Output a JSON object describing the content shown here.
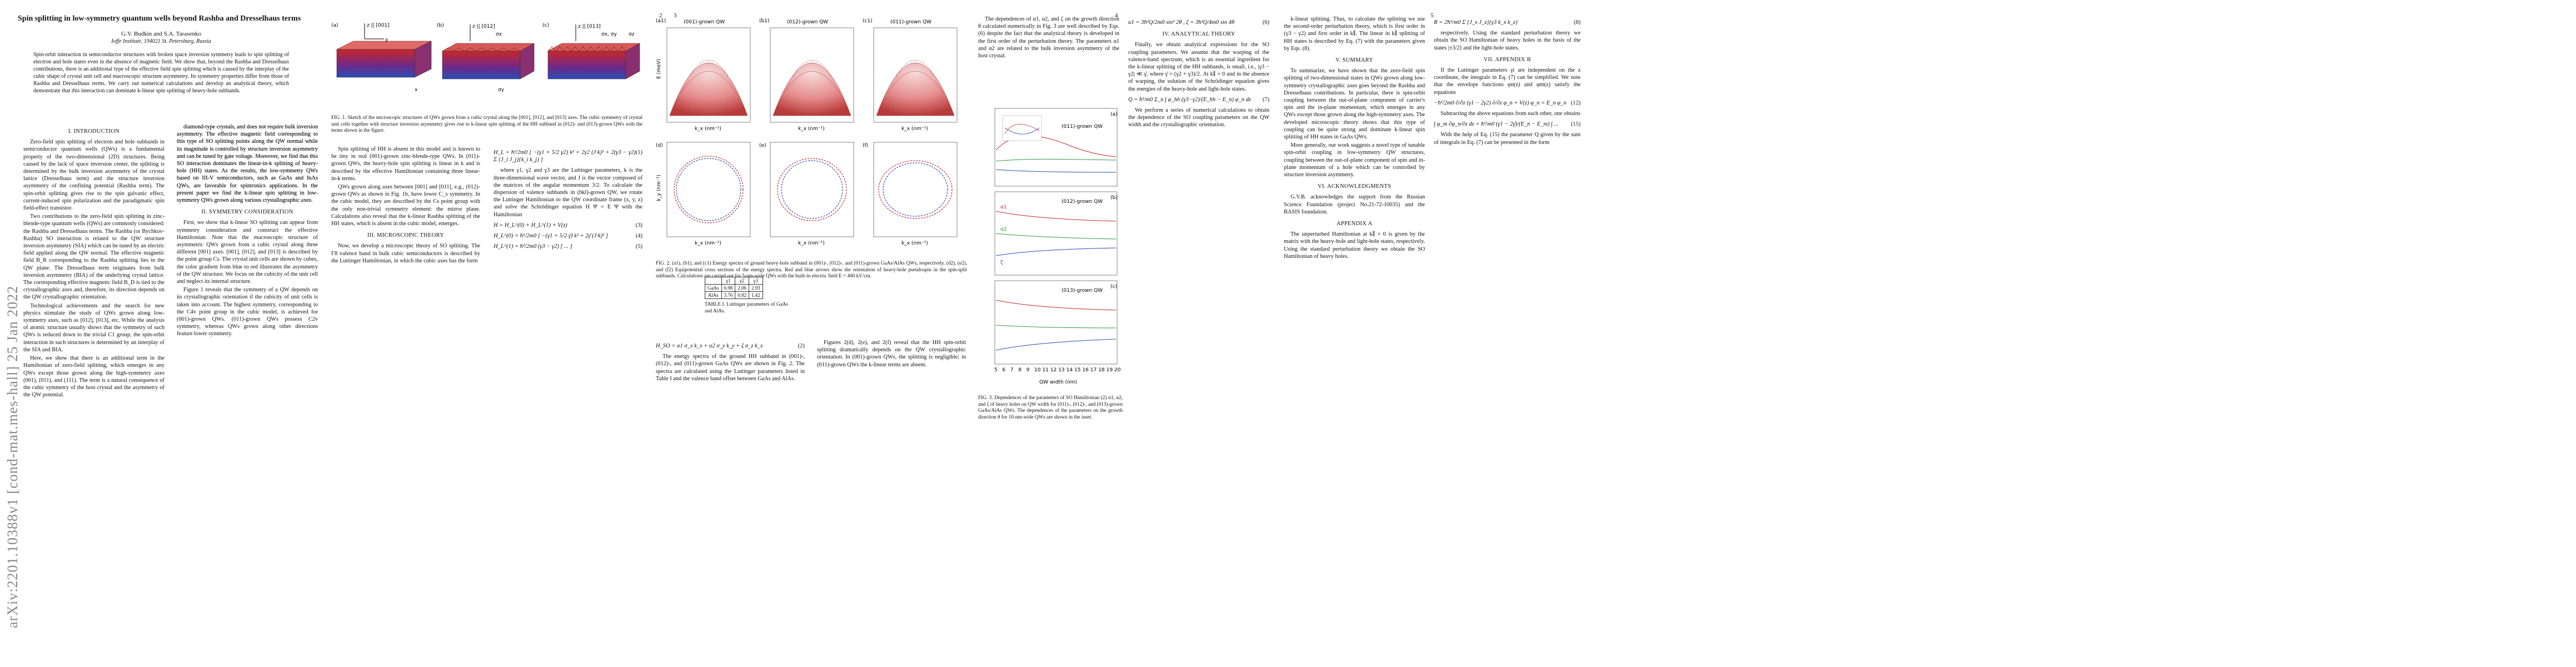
{
  "arxiv_stamp": "arXiv:2201.10388v1  [cond-mat.mes-hall]  25 Jan 2022",
  "page_numbers": [
    "2",
    "3",
    "4",
    "5"
  ],
  "paper": {
    "title": "Spin splitting in low-symmetry quantum wells beyond Rashba and Dresselhaus terms",
    "authors": "G.V. Budkin and S.A. Tarasenko",
    "affiliation": "Ioffe Institute, 194021 St. Petersburg, Russia",
    "abstract": "Spin-orbit interaction in semiconductor structures with broken space inversion symmetry leads to spin splitting of electron and hole states even in the absence of magnetic field. We show that, beyond the Rashba and Dresselhaus contributions, there is an additional type of the effective field spin splitting which is caused by the interplay of the cubic shape of crystal unit cell and macroscopic structure asymmetry. Its symmetry properties differ from those of Rashba and Dresselhaus terms. We carry out numerical calculations and develop an analytical theory, which demonstrate that this interaction can dominate k-linear spin splitting of heavy-hole subbands.",
    "sections": {
      "intro": "I.  INTRODUCTION",
      "symmetry": "II.  SYMMETRY CONSIDERATION",
      "micro": "III.  MICROSCOPIC THEORY",
      "analytical": "IV.  ANALYTICAL THEORY",
      "summary": "V.  SUMMARY",
      "ack": "VI.  ACKNOWLEDGMENTS",
      "appA": "APPENDIX A",
      "appB": "VII.  APPENDIX B"
    },
    "intro_p1": "Zero-field spin splitting of electron and hole subbands in semiconductor quantum wells (QWs) is a fundamental property of the two-dimensional (2D) structures. Being caused by the lack of space inversion center, the splitting is determined by the bulk inversion asymmetry of the crystal lattice (Dresselhaus term) and the structure inversion asymmetry of the confining potential (Rashba term). The spin-orbit splitting gives rise to the spin galvanic effect, current-induced spin polarization and the paradigmatic spin field-effect transistor.",
    "intro_p2": "Two contributions to the zero-field spin splitting in zinc-blende-type quantum wells (QWs) are commonly considered: the Rashba and Dresselhaus terms. The Rashba (or Bychkov-Rashba) SO interaction is related to the QW structure inversion asymmetry (SIA) which can be tuned by an electric field applied along the QW normal. The effective magnetic field B_R corresponding to the Rashba splitting lies in the QW plane. The Dresselhaus term originates from bulk inversion asymmetry (BIA) of the underlying crystal lattice. The corresponding effective magnetic field B_D is tied to the crystallographic axes and, therefore, its direction depends on the QW crystallographic orientation.",
    "intro_p3": "Technological achievements and the search for new physics stimulate the study of QWs grown along low-symmetry axes, such as [012], [013], etc. While the analysis of atomic structure usually shows that the symmetry of such QWs is reduced down to the trivial C1 group, the spin-orbit interaction in such structures is determined by an interplay of the SIA and BIA.",
    "intro_p4": "Here, we show that there is an additional term in the Hamiltonian of zero-field splitting, which emerges in any QWs except those grown along the high-symmetry axes (001), (011), and (111). The term is a natural consequence of the cubic symmetry of the host crystal and the asymmetry of the QW potential.",
    "col2_p1": "diamond-type crystals, and does not require bulk inversion asymmetry. The effective magnetic field corresponding to this type of SO splitting points along the QW normal while its magnitude is controlled by structure inversion asymmetry and can be tuned by gate voltage. Moreover, we find that this SO interaction dominates the linear-in-k splitting of heavy-hole (HH) states. As the results, the low-symmetry QWs based on III-V semiconductors, such as GaAs and InAs QWs, are favorable for spintronics applications. In the present paper we find the k-linear spin splitting in low-symmetry QWs grown along various crystallographic axes.",
    "col2_p2": "First, we show that k-linear SO splitting can appear from symmetry consideration and construct the effective Hamiltonian. Note that the macroscopic structure of asymmetric QWs grown from a cubic crystal along three different [001] axes: [001], [012], and [013] is described by the point group Cs. The crystal unit cells are shown by cubes, the color gradient from blue to red illustrates the asymmetry of the QW structure. We focus on the cubicity of the unit cell and neglect its internal structure.",
    "col2_p3": "Figure 1 reveals that the symmetry of a QW depends on its crystallographic orientation if the cubicity of unit cells is taken into account. The highest symmetry, corresponding to the C4v point group in the cubic model, is achieved for (001)-grown QWs. (011)-grown QWs possess C2v symmetry, whereas QWs grown along other directions feature lower symmetry.",
    "col3_p1": "Spin splitting of HH is absent in this model and is known to be tiny in real (001)-grown zinc-blende-type QWs. In (011)-grown QWs, the heavy-hole spin splitting is linear in k and is described by the effective Hamiltonian containing three linear-in-k terms.",
    "col3_p2": "QWs grown along axes between [001] and [011], e.g., (012)-grown QWs as shown in Fig. 1b, have lower C_s symmetry. In the cubic model, they are described by the Cs point group with the only non-trivial symmetry element: the mirror plane. Calculations also reveal that the k-linear Rashba splitting of the HH states, which is absent in the cubic model, emerges.",
    "col3_p3": "Now, we develop a microscopic theory of SO splitting. The Γ8 valence band in bulk cubic semiconductors is described by the Luttinger Hamiltonian, in which the cubic axes has the form",
    "col4_p1": "where γ1, γ2 and γ3 are the Luttinger parameters, k is the three-dimensional wave vector, and J is the vector composed of the matrices of the angular momentum 3/2. To calculate the dispersion of valence subbands in (hkl)-grown QW, we rotate the Luttinger Hamiltonian to the QW coordinate frame (x, y, z) and solve the Schrödinger equation H Ψ = E Ψ with the Hamiltonian",
    "col4_p2": "The energy spectra of the ground HH subband in (001)-, (012)-, and (011)-grown GaAs QWs are shown in Fig. 2. The spectra are calculated using the Luttinger parameters listed in Table I and the valence band offset between GaAs and AlAs.",
    "col4_p3": "Figures 2(d), 2(e), and 2(f) reveal that the HH spin-orbit splitting dramatically depends on the QW crystallographic orientation. In (001)-grown QWs, the splitting is negligible; in (011)-grown QWs the k-linear terms are absent.",
    "col5_p1": "The dependences of α1, α2, and ζ on the growth direction θ calculated numerically in Fig. 3 are well described by Eqs. (6) despite the fact that the analytical theory is developed in the first order of the perturbation theory. The parameters α1 and α2 are related to the bulk inversion asymmetry of the host crystal.",
    "col5_p2": "Finally, we obtain analytical expressions for the SO coupling parameters. We assume that the warping of the valence-band spectrum, which is an essential ingredient for the k-linear splitting of the HH subbands, is small, i.e., |γ3 − γ2| ≪ γ̄, where γ̄ = (γ2 + γ3)/2. At k∥ = 0 and in the absence of warping, the solution of the Schrödinger equation gives the energies of the heavy-hole and light-hole states.",
    "col5_p3": "We perform a series of numerical calculations to obtain the dependence of the SO coupling parameters on the QW width and the crystallographic orientation.",
    "col6_p1": "k-linear splitting. Thus, to calculate the splitting we use the second-order perturbation theory, which is first order in (γ3 − γ2) and first order in k∥. The linear in k∥ splitting of HH states is described by Eq. (7) with the parameters given by Eqs. (8).",
    "col6_p2": "To summarize, we have shown that the zero-field spin splitting of two-dimensional states in QWs grown along low-symmetry crystallographic axes goes beyond the Rashba and Dresselhaus contributions. In particular, there is spin-orbit coupling between the out-of-plane component of carrier's spin and the in-plane momentum, which emerges in any QWs except those grown along the high-symmetry axes. The developed microscopic theory shows that this type of coupling can be quite strong and dominate k-linear spin splitting of HH states in GaAs QWs.",
    "col6_p3": "More generally, our work suggests a novel type of tunable spin-orbit coupling in low-symmetry QW structures, coupling between the out-of-plane component of spin and in-plane momentum of a hole which can be controlled by structure inversion asymmetry.",
    "col6_p4": "G.V.B. acknowledges the support from the Russian Science Foundation (project No.21-72-10035) and the BASIS foundation.",
    "col6_p5": "The unperturbed Hamiltonian at k∥ = 0 is given by the matrix with the heavy-hole and light-hole states, respectively. Using the standard perturbation theory we obtain the SO Hamiltonian of heavy holes.",
    "col7_p1": "respectively. Using the standard perturbation theory we obtain the SO Hamiltonian of heavy holes in the basis of the states |±3/2⟩ and the light-hole states.",
    "col7_p2": "If the Luttinger parameters γi are independent on the z coordinate, the integrals in Eq. (7) can be simplified. We note that the envelope functions φn(z) and φm(z) satisfy the equations",
    "col7_p3": "Subtracting the above equations from each other, one obtains",
    "col7_p4": "With the help of Eq. (15) the parameter Q given by the sum of integrals in Eq. (7) can be presented in the form"
  },
  "equations": {
    "eq1": "H_L = ħ²/2m0 [ −(γ1 + 5/2 γ2) k² + 2γ2 (J·k)² + 2(γ3 − γ2) Σ {J_i J_j}{k_i k_j} ]",
    "eq1_num": "(1)",
    "eq2": "H_SO = α1 σ_x k_x + α2 σ_y k_y + ζ σ_z k_x",
    "eq2_num": "(2)",
    "eq3": "H = H_L^(0) + H_L^(1) + V(z)",
    "eq3_num": "(3)",
    "eq4": "H_L^(0) = ħ²/2m0 [ −(γ1 + 5/2 γ̄) k² + 2γ̄ (J·k)² ]",
    "eq4_num": "(4)",
    "eq5": "H_L^(1) = ħ²/2m0 (γ3 − γ2) [ ... ]",
    "eq5_num": "(5)",
    "eq6": "α1 = 3ħ²Q/2m0 sin² 2θ ,   ζ = 3ħ²Q/4m0 sin 4θ",
    "eq6_num": "(6)",
    "eq7": "Q = ħ²/m0 Σ_n ∫ φ_hh (γ3−γ2)/(E_hh − E_n) φ_n dz",
    "eq7_num": "(7)",
    "eq8": "R = 2ħ²/m0 Σ {J_x J_z}{γ3 k_x k_z}",
    "eq8_num": "(8)",
    "eq12": "−ħ²/2m0 ∂/∂z (γ1 − 2γ2) ∂/∂z φ_n + V(z) φ_n = E_n φ_n",
    "eq12_num": "(12)",
    "eq15": "∫ φ_m ∂φ_n/∂z dz = ħ²/m0 (γ1 − 2γ̄)/(E_n − E_m) ∫ ...",
    "eq15_num": "(15)"
  },
  "figures": {
    "fig1": {
      "panel_labels": [
        "(a)",
        "(b)",
        "(c)"
      ],
      "axis_labels": [
        "z || [001]",
        "z || [012]",
        "z || [013]",
        "x",
        "y"
      ],
      "sigma_labels": [
        "σx",
        "σy",
        "σx, σy",
        "σz"
      ],
      "caption": "FIG. 1. Sketch of the microscopic structures of QWs grown from a cubic crystal along the [001], [012], and [013] axes. The cubic symmetry of crystal unit cells together with structure inversion asymmetry gives rise to k-linear spin splitting of the HH subband in (012)- and (013)-grown QWs with the terms shown in the figure."
    },
    "fig2": {
      "panel_titles": [
        "(001)-grown QW",
        "(012)-grown QW",
        "(011)-grown QW"
      ],
      "panel_labels": [
        "(a1)",
        "(b1)",
        "(c1)",
        "(d)",
        "(e)",
        "(f)"
      ],
      "ylabel": "E (meV)",
      "xlabel": "k_x (nm⁻¹)",
      "ky_label": "k_y (nm⁻¹)",
      "caption": "FIG. 2. (a1), (b1), and (c1) Energy spectra of ground heavy-hole subband in (001)-, (012)-, and (011)-grown GaAs/AlAs QWs, respectively. (d2), (e2), and (f2) Equipotential cross sections of the energy spectra. Red and blue arrows show the orientation of heavy-hole pseudospin in the spin-split subbands. Calculations are carried out for 5-nm-wide QWs with the built-in electric field E = 400 kV/cm."
    },
    "table1": {
      "caption": "TABLE I. Luttinger parameters of GaAs and AlAs.",
      "header": [
        "",
        "γ1",
        "γ2",
        "γ3"
      ],
      "rows": [
        [
          "GaAs",
          "6.98",
          "2.06",
          "2.93"
        ],
        [
          "AlAs",
          "3.76",
          "0.82",
          "1.42"
        ]
      ]
    },
    "fig3": {
      "panel_labels": [
        "(a)",
        "(b)",
        "(c)"
      ],
      "legend": [
        "(011)-grown QW",
        "(012)-grown QW",
        "(013)-grown QW",
        "α1",
        "α2",
        "ζ"
      ],
      "xlabel": "QW width (nm)",
      "xticks": [
        "5",
        "6",
        "7",
        "8",
        "9",
        "10",
        "11",
        "12",
        "13",
        "14",
        "15",
        "16",
        "17",
        "18",
        "19",
        "20"
      ],
      "caption": "FIG. 3. Dependences of the parameters of SO Hamiltonian (2) α1, α2, and ζ of heavy holes on QW width for (011)-, (012)-, and (013)-grown GaAs/AlAs QWs. The dependences of the parameters on the growth direction θ for 10-nm-wide QWs are shown in the inset."
    }
  },
  "colors": {
    "red": "#c8262b",
    "blue": "#2a4db5",
    "green": "#2e9a3a",
    "purple": "#7d2c8e",
    "gray": "#666666"
  }
}
